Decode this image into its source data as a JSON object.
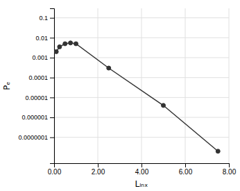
{
  "chart_data": {
    "type": "line",
    "xlabel": "Lₗₙₓ",
    "ylabel": "Pₑ",
    "x": [
      0.1,
      0.25,
      0.5,
      0.75,
      1.0,
      2.5,
      5.0,
      7.5
    ],
    "values": [
      0.002,
      0.0035,
      0.005,
      0.0055,
      0.005,
      0.0003,
      4e-06,
      2e-08
    ],
    "color": "#333333",
    "marker": "circle",
    "log": "y",
    "grid": true,
    "xlim": [
      0.0,
      8.0
    ],
    "ylim": [
      5e-09,
      0.3
    ],
    "xticks": [
      {
        "value": 0.0,
        "label": "0.00"
      },
      {
        "value": 2.0,
        "label": "2.00"
      },
      {
        "value": 4.0,
        "label": "4.00"
      },
      {
        "value": 6.0,
        "label": "6.00"
      },
      {
        "value": 8.0,
        "label": "8.00"
      }
    ],
    "yticks": [
      {
        "value": 1e-07,
        "label": "0.0000001"
      },
      {
        "value": 1e-06,
        "label": "0.000001"
      },
      {
        "value": 1e-05,
        "label": "0.00001"
      },
      {
        "value": 0.0001,
        "label": "0.0001"
      },
      {
        "value": 0.001,
        "label": "0.001"
      },
      {
        "value": 0.01,
        "label": "0.01"
      },
      {
        "value": 0.1,
        "label": "0.1"
      }
    ]
  }
}
